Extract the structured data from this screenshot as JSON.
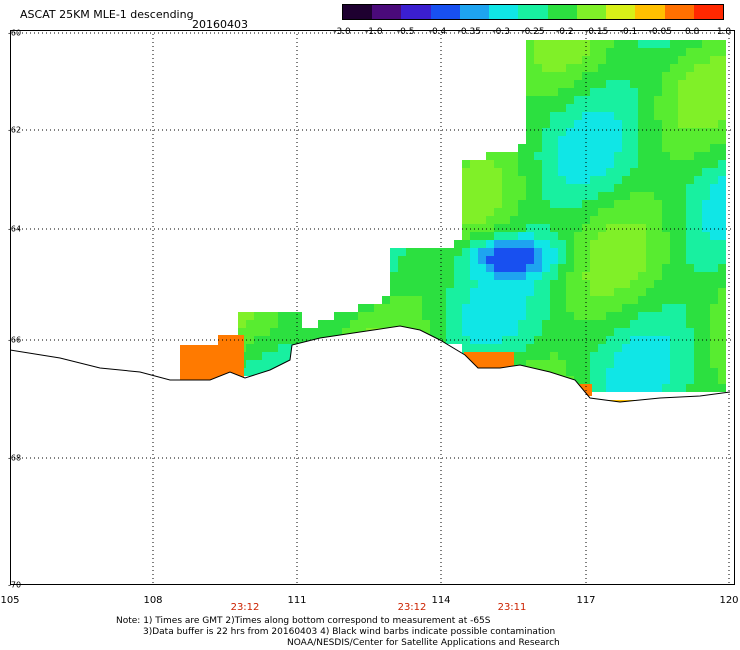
{
  "header": {
    "title": "ASCAT 25KM MLE-1 descending",
    "date": "20160403"
  },
  "colorbar": {
    "ticks": [
      "-3.0",
      "-1.0",
      "-0.5",
      "-0.4",
      "-0.35",
      "-0.3",
      "-0.25",
      "-0.2",
      "-0.15",
      "-0.1",
      "-0.05",
      "0.0",
      "1.0"
    ],
    "colors": [
      "#1e0030",
      "#4a0a7a",
      "#3b1fd0",
      "#1850f0",
      "#1ea4f0",
      "#10e6e6",
      "#18f0a0",
      "#2ce040",
      "#80f028",
      "#d8f018",
      "#ffc000",
      "#ff7000",
      "#ff2800"
    ]
  },
  "map": {
    "lat_ticks": [
      "-60",
      "-62",
      "-64",
      "-66",
      "-68",
      "-70"
    ],
    "lon_ticks": [
      "105",
      "108",
      "111",
      "114",
      "117",
      "120"
    ],
    "time_marks": [
      "23:12",
      "23:12",
      "23:11"
    ]
  },
  "notes": {
    "line1": "Note: 1) Times are GMT 2)Times along bottom correspond to measurement at -65S",
    "line2": "3)Data buffer is 22 hrs from 20160403 4) Black wind barbs indicate possible contamination",
    "line3": "NOAA/NESDIS/Center for Satellite Applications and Research"
  }
}
